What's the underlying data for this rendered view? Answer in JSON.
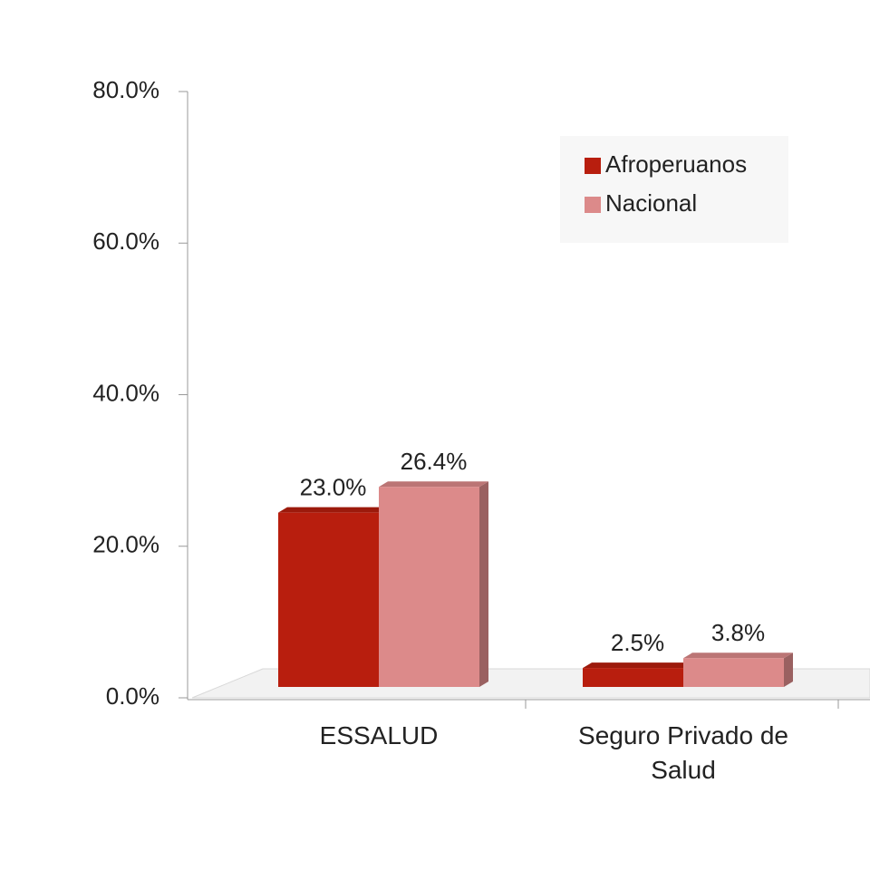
{
  "chart_data": {
    "type": "bar3d",
    "categories": [
      "ESSALUD",
      "Seguro Privado de Salud"
    ],
    "series": [
      {
        "name": "Afroperuanos",
        "color": "#b81e0e",
        "values": [
          23.0,
          2.5
        ],
        "value_labels": [
          "23.0%",
          "2.5%"
        ]
      },
      {
        "name": "Nacional",
        "color": "#dc8a8a",
        "values": [
          26.4,
          3.8
        ],
        "value_labels": [
          "26.4%",
          "3.8%"
        ]
      }
    ],
    "ylim": [
      0,
      80
    ],
    "yticks": [
      {
        "value": 0,
        "label": "0.0%"
      },
      {
        "value": 20,
        "label": "20.0%"
      },
      {
        "value": 40,
        "label": "40.0%"
      },
      {
        "value": 60,
        "label": "60.0%"
      },
      {
        "value": 80,
        "label": "80.0%"
      }
    ],
    "legend": "top-right"
  }
}
